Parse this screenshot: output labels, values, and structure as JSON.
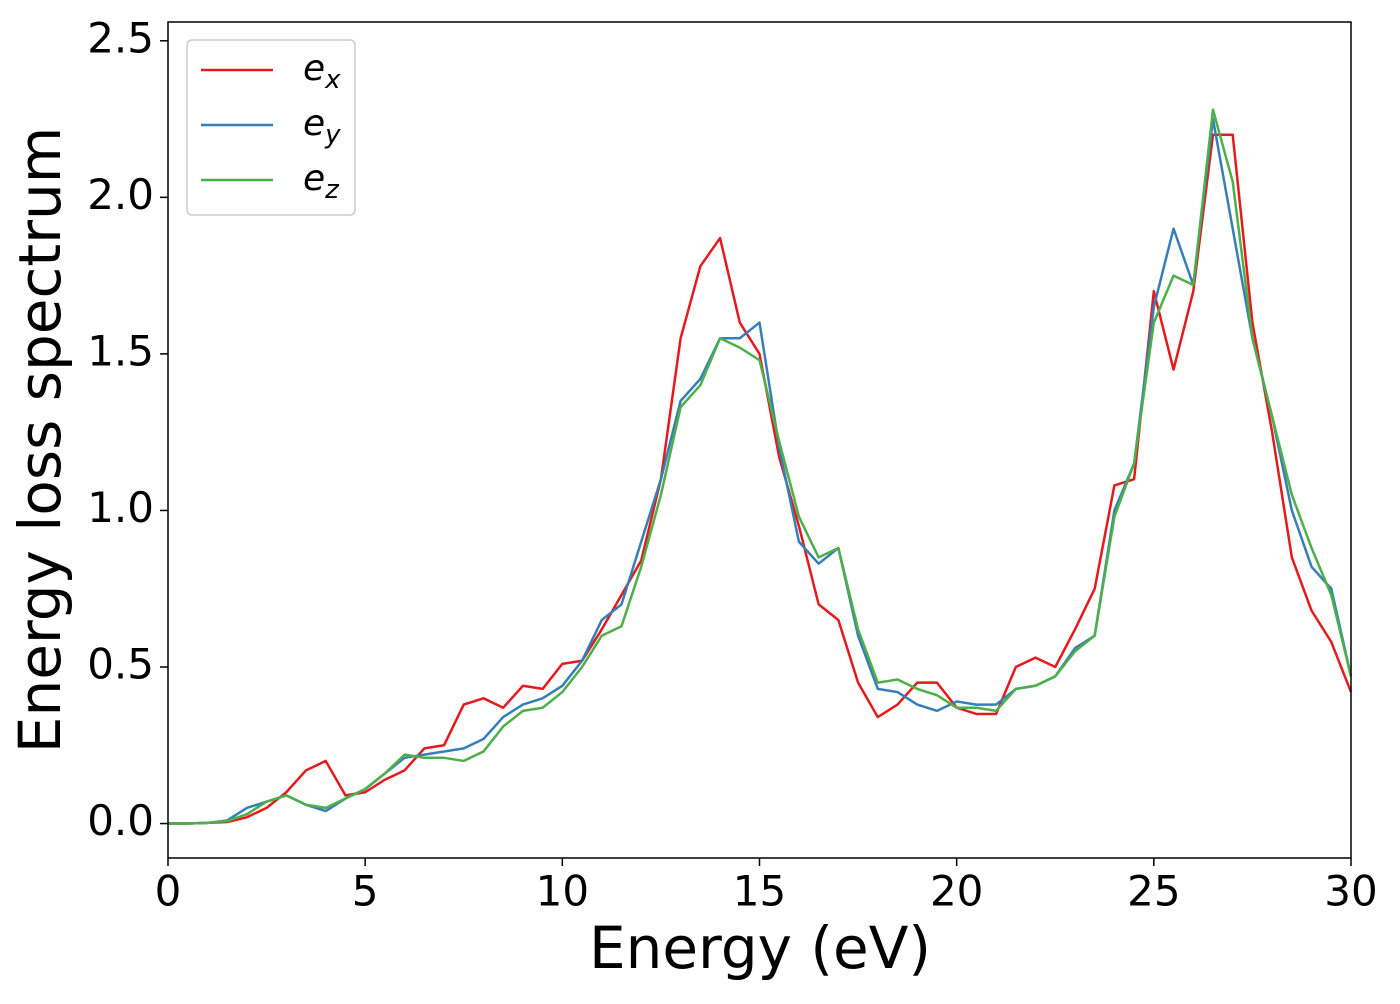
{
  "chart_data": {
    "type": "line",
    "xlabel": "Energy (eV)",
    "ylabel": "Energy loss spectrum",
    "xlim": [
      0,
      30
    ],
    "ylim": [
      -0.11,
      2.56
    ],
    "xticks": [
      0,
      5,
      10,
      15,
      20,
      25,
      30
    ],
    "yticks": [
      {
        "value": 0,
        "label": "0.0"
      },
      {
        "value": 0.5,
        "label": "0.5"
      },
      {
        "value": 1,
        "label": "1.0"
      },
      {
        "value": 1.5,
        "label": "1.5"
      },
      {
        "value": 2,
        "label": "2.0"
      },
      {
        "value": 2.5,
        "label": "2.5"
      }
    ],
    "legend": "upper left",
    "x": [
      0,
      0.5,
      1,
      1.5,
      2,
      2.5,
      3,
      3.5,
      4,
      4.5,
      5,
      5.5,
      6,
      6.5,
      7,
      7.5,
      8,
      8.5,
      9,
      9.5,
      10,
      10.5,
      11,
      11.5,
      12,
      12.5,
      13,
      13.5,
      14,
      14.5,
      15,
      15.5,
      16,
      16.5,
      17,
      17.5,
      18,
      18.5,
      19,
      19.5,
      20,
      20.5,
      21,
      21.5,
      22,
      22.5,
      23,
      23.5,
      24,
      24.5,
      25,
      25.5,
      26,
      26.5,
      27,
      27.5,
      28,
      28.5,
      29,
      29.5,
      30
    ],
    "series": [
      {
        "name": "ex",
        "color": "#e41a1c",
        "values": [
          0,
          0,
          0.002,
          0.005,
          0.02,
          0.05,
          0.1,
          0.17,
          0.2,
          0.09,
          0.1,
          0.14,
          0.17,
          0.24,
          0.25,
          0.38,
          0.4,
          0.37,
          0.44,
          0.43,
          0.51,
          0.52,
          0.62,
          0.73,
          0.84,
          1.1,
          1.55,
          1.78,
          1.87,
          1.6,
          1.5,
          1.17,
          0.95,
          0.7,
          0.65,
          0.45,
          0.34,
          0.38,
          0.45,
          0.45,
          0.37,
          0.35,
          0.35,
          0.5,
          0.53,
          0.5,
          0.62,
          0.75,
          1.08,
          1.1,
          1.7,
          1.45,
          1.7,
          2.2,
          2.2,
          1.6,
          1.25,
          0.85,
          0.68,
          0.58,
          0.42
        ]
      },
      {
        "name": "ey",
        "color": "#377eb8",
        "values": [
          0,
          0,
          0.002,
          0.01,
          0.05,
          0.07,
          0.09,
          0.06,
          0.04,
          0.08,
          0.11,
          0.16,
          0.21,
          0.22,
          0.23,
          0.24,
          0.27,
          0.34,
          0.38,
          0.4,
          0.44,
          0.52,
          0.65,
          0.7,
          0.9,
          1.1,
          1.35,
          1.42,
          1.55,
          1.55,
          1.6,
          1.2,
          0.9,
          0.83,
          0.88,
          0.6,
          0.43,
          0.42,
          0.38,
          0.36,
          0.39,
          0.38,
          0.38,
          0.43,
          0.44,
          0.47,
          0.56,
          0.6,
          1.0,
          1.15,
          1.65,
          1.9,
          1.72,
          2.25,
          1.9,
          1.55,
          1.3,
          1.0,
          0.82,
          0.75,
          0.47
        ]
      },
      {
        "name": "ez",
        "color": "#4daf4a",
        "values": [
          0,
          0,
          0.002,
          0.008,
          0.03,
          0.07,
          0.09,
          0.06,
          0.05,
          0.08,
          0.11,
          0.16,
          0.22,
          0.21,
          0.21,
          0.2,
          0.23,
          0.31,
          0.36,
          0.37,
          0.42,
          0.5,
          0.6,
          0.63,
          0.82,
          1.05,
          1.33,
          1.4,
          1.55,
          1.52,
          1.48,
          1.22,
          0.98,
          0.85,
          0.88,
          0.62,
          0.45,
          0.46,
          0.43,
          0.41,
          0.37,
          0.37,
          0.36,
          0.43,
          0.44,
          0.47,
          0.55,
          0.6,
          0.98,
          1.15,
          1.6,
          1.75,
          1.72,
          2.28,
          2.05,
          1.55,
          1.3,
          1.05,
          0.88,
          0.73,
          0.47
        ]
      }
    ]
  }
}
